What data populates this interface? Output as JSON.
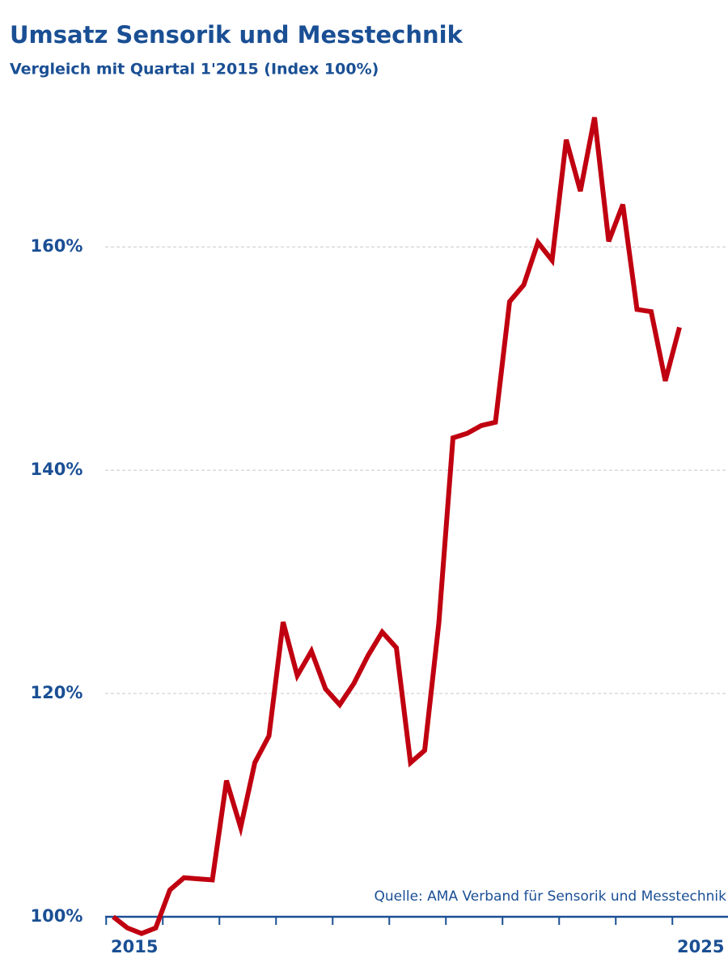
{
  "chart_data": {
    "type": "line",
    "title": "Umsatz Sensorik und Messtechnik",
    "subtitle": "Vergleich mit Quartal 1'2015 (Index 100%)",
    "source": "Quelle: AMA Verband für Sensorik und Messtechnik",
    "categories": [
      "2015",
      null,
      null,
      null,
      null,
      null,
      null,
      null,
      null,
      null,
      null,
      null,
      null,
      null,
      null,
      null,
      null,
      null,
      null,
      null,
      null,
      null,
      null,
      null,
      null,
      null,
      null,
      null,
      null,
      null,
      null,
      null,
      null,
      null,
      null,
      null,
      null,
      null,
      null,
      null,
      "2025"
    ],
    "series": [
      {
        "color": "#c00010",
        "values": [
          100,
          99.0,
          98.5,
          99.0,
          102.4,
          103.5,
          103.4,
          103.3,
          112.2,
          108.0,
          113.8,
          116.2,
          126.4,
          121.6,
          123.8,
          120.4,
          119.0,
          120.9,
          123.4,
          125.5,
          124.1,
          113.8,
          114.9,
          126.3,
          142.9,
          143.3,
          144.0,
          144.3,
          155.1,
          156.6,
          160.4,
          158.8,
          169.6,
          165.0,
          171.6,
          160.5,
          163.8,
          154.4,
          154.2,
          148.0,
          152.8
        ]
      }
    ],
    "ylim": [
      100,
      174
    ],
    "yticks": [
      {
        "value": 100,
        "label": "100%"
      },
      {
        "value": 120,
        "label": "120%"
      },
      {
        "value": 140,
        "label": "140%"
      },
      {
        "value": 160,
        "label": "160%"
      }
    ],
    "grid": true
  }
}
